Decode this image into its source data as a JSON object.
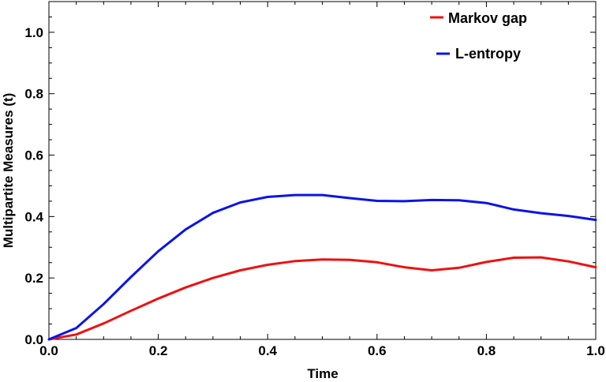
{
  "chart_data": {
    "type": "line",
    "xlabel": "Time",
    "ylabel": "Multipartite Measures (t)",
    "xlim": [
      0.0,
      1.0
    ],
    "ylim": [
      0.0,
      1.1
    ],
    "xticks": [
      "0.0",
      "0.2",
      "0.4",
      "0.6",
      "0.8",
      "1.0"
    ],
    "yticks": [
      "0.0",
      "0.2",
      "0.4",
      "0.6",
      "0.8",
      "1.0"
    ],
    "grid": false,
    "legend_position": "top-right",
    "x": [
      0.0,
      0.05,
      0.1,
      0.15,
      0.2,
      0.25,
      0.3,
      0.35,
      0.4,
      0.45,
      0.5,
      0.55,
      0.6,
      0.65,
      0.7,
      0.75,
      0.8,
      0.85,
      0.9,
      0.95,
      1.0
    ],
    "series": [
      {
        "name": "Markov gap",
        "color": "#ee1111",
        "values": [
          0.0,
          0.016,
          0.052,
          0.093,
          0.133,
          0.169,
          0.2,
          0.225,
          0.243,
          0.255,
          0.26,
          0.259,
          0.251,
          0.235,
          0.225,
          0.233,
          0.252,
          0.266,
          0.267,
          0.254,
          0.235
        ]
      },
      {
        "name": "L-entropy",
        "color": "#0a14e8",
        "values": [
          0.0,
          0.037,
          0.115,
          0.203,
          0.287,
          0.358,
          0.412,
          0.446,
          0.464,
          0.47,
          0.47,
          0.46,
          0.451,
          0.45,
          0.454,
          0.453,
          0.444,
          0.423,
          0.411,
          0.402,
          0.389
        ]
      }
    ]
  }
}
